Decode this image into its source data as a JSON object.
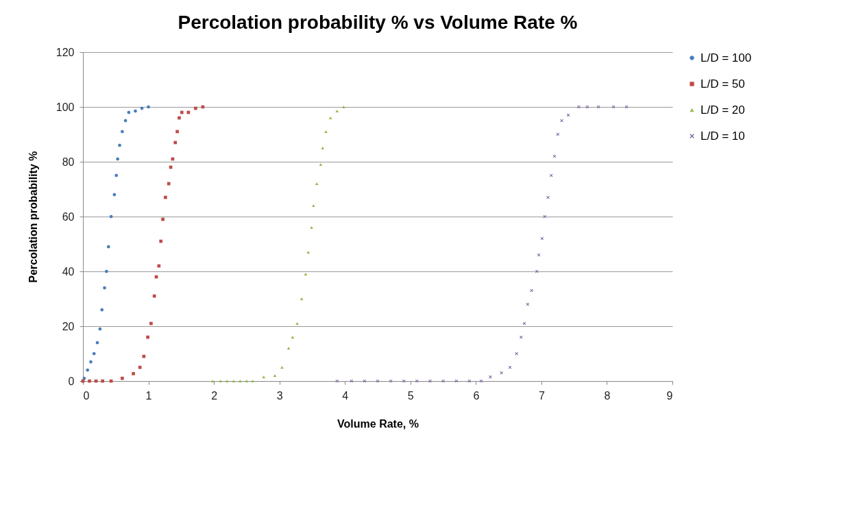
{
  "chart_data": {
    "type": "scatter",
    "title": "Percolation probability % vs Volume Rate %",
    "xlabel": "Volume Rate, %",
    "ylabel": "Percolation probability %",
    "xlim": [
      0,
      9
    ],
    "xticks": [
      0,
      1,
      2,
      3,
      4,
      5,
      6,
      7,
      8,
      9
    ],
    "ylim": [
      0,
      120
    ],
    "yticks": [
      0,
      20,
      40,
      60,
      80,
      100,
      120
    ],
    "grid": "y",
    "legend": "right",
    "series": [
      {
        "name": "L/D = 100",
        "color": "#4a7ebb",
        "marker": "circle",
        "x": [
          0,
          0.02,
          0.07,
          0.12,
          0.17,
          0.22,
          0.26,
          0.29,
          0.33,
          0.36,
          0.39,
          0.43,
          0.48,
          0.51,
          0.53,
          0.56,
          0.6,
          0.65,
          0.7,
          0.8,
          0.9,
          1.0
        ],
        "values": [
          0,
          1,
          4,
          7,
          10,
          14,
          19,
          26,
          34,
          40,
          49,
          60,
          68,
          75,
          81,
          86,
          91,
          95,
          98,
          98.5,
          99.5,
          100
        ]
      },
      {
        "name": "L/D = 50",
        "color": "#be4b48",
        "marker": "square",
        "x": [
          0,
          0.1,
          0.2,
          0.3,
          0.43,
          0.6,
          0.77,
          0.87,
          0.93,
          0.99,
          1.04,
          1.09,
          1.12,
          1.16,
          1.19,
          1.22,
          1.26,
          1.31,
          1.34,
          1.37,
          1.41,
          1.44,
          1.47,
          1.51,
          1.61,
          1.72,
          1.83
        ],
        "values": [
          0,
          0,
          0,
          0,
          0,
          1,
          2.7,
          5,
          9,
          16,
          21,
          31,
          38,
          42,
          51,
          59,
          67,
          72,
          78,
          81,
          87,
          91,
          96,
          98,
          98,
          99.5,
          100
        ]
      },
      {
        "name": "L/D = 20",
        "color": "#98b954",
        "marker": "triangle",
        "x": [
          1.98,
          2.1,
          2.2,
          2.3,
          2.4,
          2.5,
          2.59,
          2.76,
          2.93,
          3.04,
          3.14,
          3.2,
          3.27,
          3.34,
          3.4,
          3.44,
          3.49,
          3.52,
          3.57,
          3.63,
          3.66,
          3.71,
          3.78,
          3.88,
          3.98
        ],
        "values": [
          0,
          0,
          0,
          0,
          0,
          0,
          0,
          1.5,
          2,
          5,
          12,
          16,
          21,
          30,
          39,
          47,
          56,
          64,
          72,
          79,
          85,
          91,
          96,
          98.5,
          100
        ]
      },
      {
        "name": "L/D = 10",
        "color": "#7d60a0",
        "marker": "cross",
        "x": [
          3.88,
          4.1,
          4.3,
          4.5,
          4.7,
          4.9,
          5.1,
          5.3,
          5.5,
          5.7,
          5.9,
          6.08,
          6.22,
          6.39,
          6.52,
          6.62,
          6.69,
          6.74,
          6.79,
          6.85,
          6.93,
          6.96,
          7.01,
          7.05,
          7.1,
          7.15,
          7.2,
          7.25,
          7.31,
          7.41,
          7.57,
          7.7,
          7.87,
          8.1,
          8.3
        ],
        "values": [
          0,
          0,
          0,
          0,
          0,
          0,
          0,
          0,
          0,
          0,
          0,
          0,
          1.5,
          3,
          5,
          10,
          16,
          21,
          28,
          33,
          40,
          46,
          52,
          60,
          67,
          75,
          82,
          90,
          95,
          97,
          100,
          100,
          100,
          100,
          100
        ]
      }
    ]
  }
}
